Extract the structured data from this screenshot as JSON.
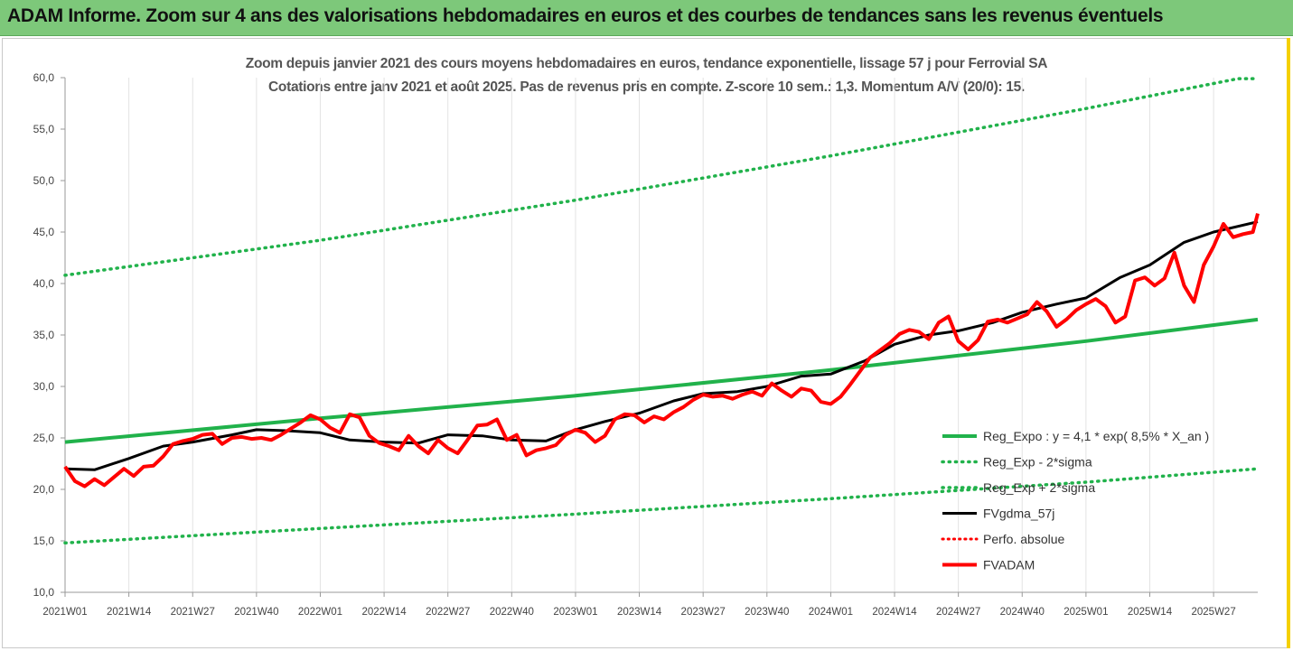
{
  "header": {
    "banner_title": "ADAM Informe. Zoom sur 4 ans des valorisations hebdomadaires en euros et des courbes de tendances sans les revenus éventuels"
  },
  "colors": {
    "banner_bg": "#7dc87a",
    "trend": "#21b24b",
    "smoothing": "#000000",
    "price": "#ff0000",
    "frame_accent": "#f5d000"
  },
  "chart_data": {
    "type": "line",
    "title": "Zoom depuis janvier 2021 des cours moyens hebdomadaires en euros, tendance exponentielle, lissage 57 j pour Ferrovial SA",
    "subtitle": "Cotations entre janv 2021 et août 2025. Pas de revenus pris en compte. Z-score 10 sem.: 1,3. Momentum A/V (20/0): 15.",
    "x_unit": "week index since 2021W01",
    "ylim": [
      10,
      60
    ],
    "ytick_labels": [
      "10,0",
      "15,0",
      "20,0",
      "25,0",
      "30,0",
      "35,0",
      "40,0",
      "45,0",
      "50,0",
      "55,0",
      "60,0"
    ],
    "xtick_labels": [
      "2021W01",
      "2021W14",
      "2021W27",
      "2021W40",
      "2022W01",
      "2022W14",
      "2022W27",
      "2022W40",
      "2023W01",
      "2023W14",
      "2023W27",
      "2023W40",
      "2024W01",
      "2024W14",
      "2024W27",
      "2024W40",
      "2025W01",
      "2025W14",
      "2025W27"
    ],
    "xlim": [
      0,
      243
    ],
    "grid": "vertical",
    "legend_position": "bottom-right",
    "series": [
      {
        "name": "Reg_Expo : y = 4,1 * exp( 8,5% *  X_an )",
        "style": "solid",
        "x": [
          0,
          52,
          104,
          156,
          208,
          243
        ],
        "values": [
          24.6,
          26.9,
          29.1,
          31.6,
          34.4,
          36.5
        ]
      },
      {
        "name": "Reg_Exp - 2*sigma",
        "style": "dotted",
        "x": [
          0,
          52,
          104,
          156,
          208,
          243
        ],
        "values": [
          14.8,
          16.2,
          17.6,
          19.1,
          20.7,
          22.0
        ]
      },
      {
        "name": "Reg_Exp + 2*sigma",
        "style": "dotted",
        "x": [
          0,
          52,
          104,
          156,
          208,
          239,
          243
        ],
        "values": [
          40.8,
          44.2,
          48.1,
          52.4,
          57.0,
          59.9,
          59.9
        ]
      },
      {
        "name": "FVgdma_57j",
        "style": "solid",
        "x": [
          0,
          6,
          13,
          20,
          26,
          34,
          39,
          45,
          52,
          58,
          65,
          72,
          78,
          85,
          91,
          98,
          104,
          110,
          117,
          124,
          130,
          137,
          143,
          150,
          156,
          163,
          169,
          176,
          182,
          189,
          195,
          202,
          208,
          215,
          221,
          228,
          234,
          243
        ],
        "values": [
          22.0,
          21.9,
          23.0,
          24.2,
          24.6,
          25.3,
          25.8,
          25.7,
          25.5,
          24.8,
          24.6,
          24.5,
          25.3,
          25.2,
          24.8,
          24.7,
          25.8,
          26.6,
          27.4,
          28.6,
          29.3,
          29.5,
          30.0,
          31.0,
          31.2,
          32.5,
          34.1,
          35.0,
          35.4,
          36.2,
          37.2,
          38.0,
          38.6,
          40.6,
          41.8,
          44.0,
          45.0,
          46.0
        ]
      },
      {
        "name": "Perfo. absolue",
        "style": "dotted",
        "x": [],
        "values": []
      },
      {
        "name": "FVADAM",
        "style": "solid",
        "x": [
          0,
          2,
          4,
          6,
          8,
          10,
          12,
          14,
          16,
          18,
          20,
          22,
          24,
          26,
          28,
          30,
          32,
          34,
          36,
          38,
          40,
          42,
          44,
          46,
          48,
          50,
          52,
          54,
          56,
          58,
          60,
          62,
          64,
          66,
          68,
          70,
          72,
          74,
          76,
          78,
          80,
          82,
          84,
          86,
          88,
          90,
          92,
          94,
          96,
          98,
          100,
          102,
          104,
          106,
          108,
          110,
          112,
          114,
          116,
          118,
          120,
          122,
          124,
          126,
          128,
          130,
          132,
          134,
          136,
          138,
          140,
          142,
          144,
          146,
          148,
          150,
          152,
          154,
          156,
          158,
          160,
          162,
          164,
          166,
          168,
          170,
          172,
          174,
          176,
          178,
          180,
          182,
          184,
          186,
          188,
          190,
          192,
          194,
          196,
          198,
          200,
          202,
          204,
          206,
          208,
          210,
          212,
          214,
          216,
          218,
          220,
          222,
          224,
          226,
          228,
          230,
          232,
          234,
          236,
          238,
          240,
          242,
          243
        ],
        "values": [
          22.2,
          20.8,
          20.3,
          21.0,
          20.4,
          21.2,
          22.0,
          21.3,
          22.2,
          22.3,
          23.2,
          24.4,
          24.7,
          24.9,
          25.3,
          25.4,
          24.4,
          25.0,
          25.1,
          24.9,
          25.0,
          24.8,
          25.3,
          25.9,
          26.5,
          27.2,
          26.8,
          26.0,
          25.5,
          27.3,
          27.0,
          25.2,
          24.5,
          24.2,
          23.8,
          25.2,
          24.2,
          23.5,
          24.8,
          24.0,
          23.5,
          24.8,
          26.2,
          26.3,
          26.8,
          24.8,
          25.3,
          23.3,
          23.8,
          24.0,
          24.3,
          25.3,
          25.8,
          25.5,
          24.6,
          25.2,
          26.8,
          27.3,
          27.2,
          26.5,
          27.1,
          26.8,
          27.5,
          28.0,
          28.7,
          29.2,
          29.0,
          29.1,
          28.8,
          29.2,
          29.5,
          29.1,
          30.3,
          29.6,
          29.0,
          29.8,
          29.6,
          28.5,
          28.3,
          29.0,
          30.2,
          31.5,
          32.8,
          33.5,
          34.2,
          35.1,
          35.5,
          35.3,
          34.6,
          36.2,
          36.8,
          34.4,
          33.6,
          34.5,
          36.3,
          36.5,
          36.2,
          36.6,
          37.0,
          38.2,
          37.3,
          35.8,
          36.5,
          37.4,
          38.0,
          38.5,
          37.8,
          36.2,
          36.8,
          40.3,
          40.6,
          39.8,
          40.5,
          43.0,
          39.8,
          38.2,
          41.8,
          43.6,
          45.8,
          44.5,
          44.8,
          45.0,
          46.8
        ]
      }
    ]
  }
}
